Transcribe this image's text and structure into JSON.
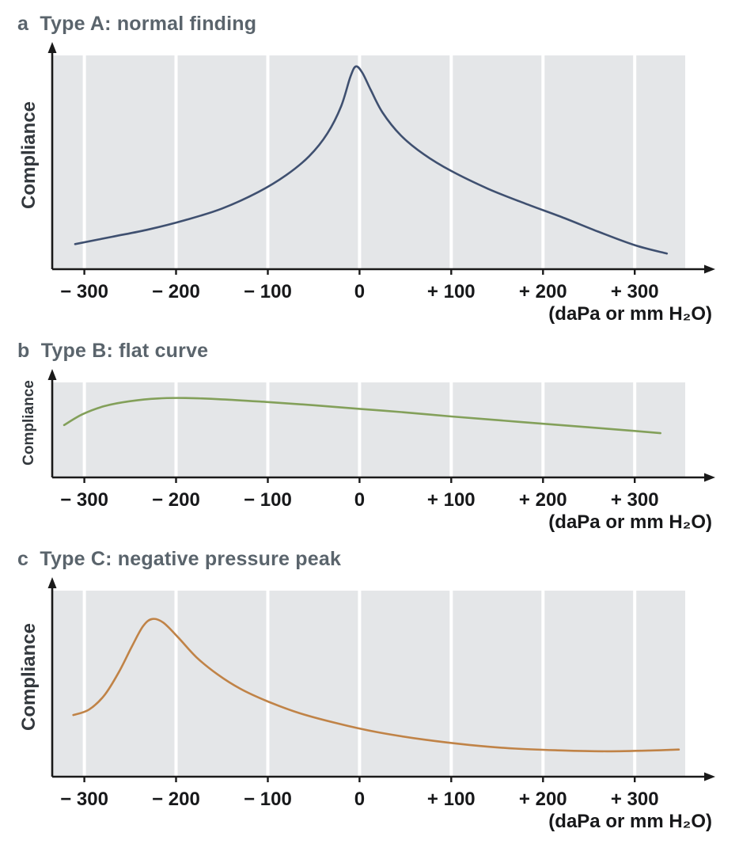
{
  "style": {
    "plot_bg": "#e4e6e8",
    "grid_color": "#ffffff",
    "axis_color": "#1a1a1a",
    "title_color": "#5a646c",
    "tick_label_color": "#17181a",
    "ylabel_color": "#33383d"
  },
  "chart_data": [
    {
      "type": "line",
      "panel_letter": "a",
      "title": "a  Type A: normal finding",
      "ylabel": "Compliance",
      "x_unit_label": "(daPa or mm H₂O)",
      "x_ticks": [
        -300,
        -200,
        -100,
        0,
        100,
        200,
        300
      ],
      "x_tick_labels": [
        "− 300",
        "− 200",
        "− 100",
        "0",
        "+ 100",
        "+ 200",
        "+ 300"
      ],
      "xlim": [
        -335,
        355
      ],
      "ylim": [
        0,
        1
      ],
      "grid": "vertical-white-lines",
      "legend": "none",
      "line_color": "#3f5070",
      "series": [
        {
          "name": "type-a-normal-curve",
          "points": [
            [
              -310,
              0.12
            ],
            [
              -270,
              0.155
            ],
            [
              -230,
              0.19
            ],
            [
              -190,
              0.235
            ],
            [
              -150,
              0.29
            ],
            [
              -110,
              0.37
            ],
            [
              -80,
              0.45
            ],
            [
              -55,
              0.54
            ],
            [
              -35,
              0.65
            ],
            [
              -20,
              0.78
            ],
            [
              -10,
              0.92
            ],
            [
              -4,
              0.97
            ],
            [
              3,
              0.94
            ],
            [
              12,
              0.86
            ],
            [
              25,
              0.75
            ],
            [
              45,
              0.64
            ],
            [
              70,
              0.55
            ],
            [
              100,
              0.47
            ],
            [
              140,
              0.385
            ],
            [
              180,
              0.315
            ],
            [
              220,
              0.25
            ],
            [
              260,
              0.18
            ],
            [
              300,
              0.115
            ],
            [
              335,
              0.075
            ]
          ]
        }
      ]
    },
    {
      "type": "line",
      "panel_letter": "b",
      "title": "b  Type B: flat curve",
      "ylabel": "Compliance",
      "x_unit_label": "(daPa or mm H₂O)",
      "x_ticks": [
        -300,
        -200,
        -100,
        0,
        100,
        200,
        300
      ],
      "x_tick_labels": [
        "− 300",
        "− 200",
        "− 100",
        "0",
        "+ 100",
        "+ 200",
        "+ 300"
      ],
      "xlim": [
        -335,
        355
      ],
      "ylim": [
        0,
        1
      ],
      "grid": "vertical-white-lines",
      "legend": "none",
      "line_color": "#83a05a",
      "series": [
        {
          "name": "type-b-flat-curve",
          "points": [
            [
              -322,
              0.58
            ],
            [
              -302,
              0.7
            ],
            [
              -278,
              0.79
            ],
            [
              -250,
              0.845
            ],
            [
              -220,
              0.875
            ],
            [
              -190,
              0.88
            ],
            [
              -150,
              0.865
            ],
            [
              -100,
              0.835
            ],
            [
              -50,
              0.8
            ],
            [
              0,
              0.76
            ],
            [
              50,
              0.72
            ],
            [
              100,
              0.675
            ],
            [
              150,
              0.635
            ],
            [
              200,
              0.595
            ],
            [
              250,
              0.555
            ],
            [
              300,
              0.515
            ],
            [
              328,
              0.49
            ]
          ]
        }
      ]
    },
    {
      "type": "line",
      "panel_letter": "c",
      "title": "c  Type C: negative pressure peak",
      "ylabel": "Compliance",
      "x_unit_label": "(daPa or mm H₂O)",
      "x_ticks": [
        -300,
        -200,
        -100,
        0,
        100,
        200,
        300
      ],
      "x_tick_labels": [
        "− 300",
        "− 200",
        "− 100",
        "0",
        "+ 100",
        "+ 200",
        "+ 300"
      ],
      "xlim": [
        -335,
        355
      ],
      "ylim": [
        0,
        1
      ],
      "grid": "vertical-white-lines",
      "legend": "none",
      "line_color": "#c08347",
      "series": [
        {
          "name": "type-c-negative-pressure-curve",
          "points": [
            [
              -312,
              0.34
            ],
            [
              -295,
              0.37
            ],
            [
              -278,
              0.45
            ],
            [
              -262,
              0.58
            ],
            [
              -248,
              0.72
            ],
            [
              -236,
              0.83
            ],
            [
              -226,
              0.87
            ],
            [
              -214,
              0.85
            ],
            [
              -198,
              0.77
            ],
            [
              -178,
              0.66
            ],
            [
              -155,
              0.565
            ],
            [
              -130,
              0.485
            ],
            [
              -100,
              0.415
            ],
            [
              -65,
              0.35
            ],
            [
              -25,
              0.295
            ],
            [
              20,
              0.245
            ],
            [
              70,
              0.205
            ],
            [
              120,
              0.175
            ],
            [
              170,
              0.155
            ],
            [
              220,
              0.145
            ],
            [
              270,
              0.14
            ],
            [
              320,
              0.145
            ],
            [
              348,
              0.15
            ]
          ]
        }
      ]
    }
  ]
}
